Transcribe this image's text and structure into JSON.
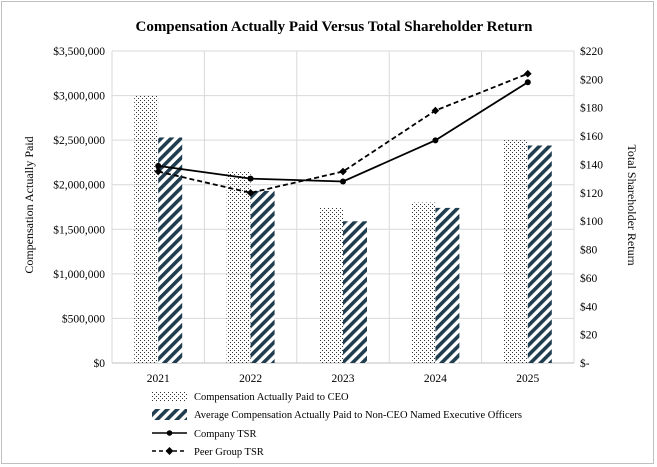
{
  "chart_data": {
    "type": "bar",
    "title": "Compensation Actually Paid Versus Total Shareholder Return",
    "categories": [
      "2021",
      "2022",
      "2023",
      "2024",
      "2025"
    ],
    "ylabel": "Compensation Actually Paid",
    "y2label": "Total Shareholder Return",
    "ylim": [
      0,
      3500000
    ],
    "y2lim": [
      0,
      220
    ],
    "y_ticks": [
      "$0",
      "$500,000",
      "$1,000,000",
      "$1,500,000",
      "$2,000,000",
      "$2,500,000",
      "$3,000,000",
      "$3,500,000"
    ],
    "y_tick_values": [
      0,
      500000,
      1000000,
      1500000,
      2000000,
      2500000,
      3000000,
      3500000
    ],
    "y2_ticks": [
      "$-",
      "$20",
      "$40",
      "$60",
      "$80",
      "$100",
      "$120",
      "$140",
      "$160",
      "$180",
      "$200",
      "$220"
    ],
    "y2_tick_values": [
      0,
      20,
      40,
      60,
      80,
      100,
      120,
      140,
      160,
      180,
      200,
      220
    ],
    "grid": true,
    "legend_position": "bottom",
    "series": [
      {
        "name": "Compensation Actually Paid to CEO",
        "kind": "bar",
        "axis": "left",
        "pattern": "dots",
        "values": [
          3000000,
          2150000,
          1750000,
          1800000,
          2500000
        ]
      },
      {
        "name": "Average Compensation Actually Paid to Non-CEO Named Executive Officers",
        "kind": "bar",
        "axis": "left",
        "pattern": "diagonal",
        "values": [
          2530000,
          1930000,
          1590000,
          1740000,
          2440000
        ]
      },
      {
        "name": "Company TSR",
        "kind": "line",
        "axis": "right",
        "style": "solid",
        "marker": "circle",
        "values": [
          139,
          130,
          128,
          157,
          198
        ]
      },
      {
        "name": "Peer Group TSR",
        "kind": "line",
        "axis": "right",
        "style": "dashed",
        "marker": "diamond",
        "values": [
          135,
          120,
          135,
          178,
          204
        ]
      }
    ],
    "colors": {
      "bar_hatch": "#1f3d4f",
      "dot": "#333333",
      "line": "#000000",
      "grid": "#d9d9d9"
    }
  }
}
